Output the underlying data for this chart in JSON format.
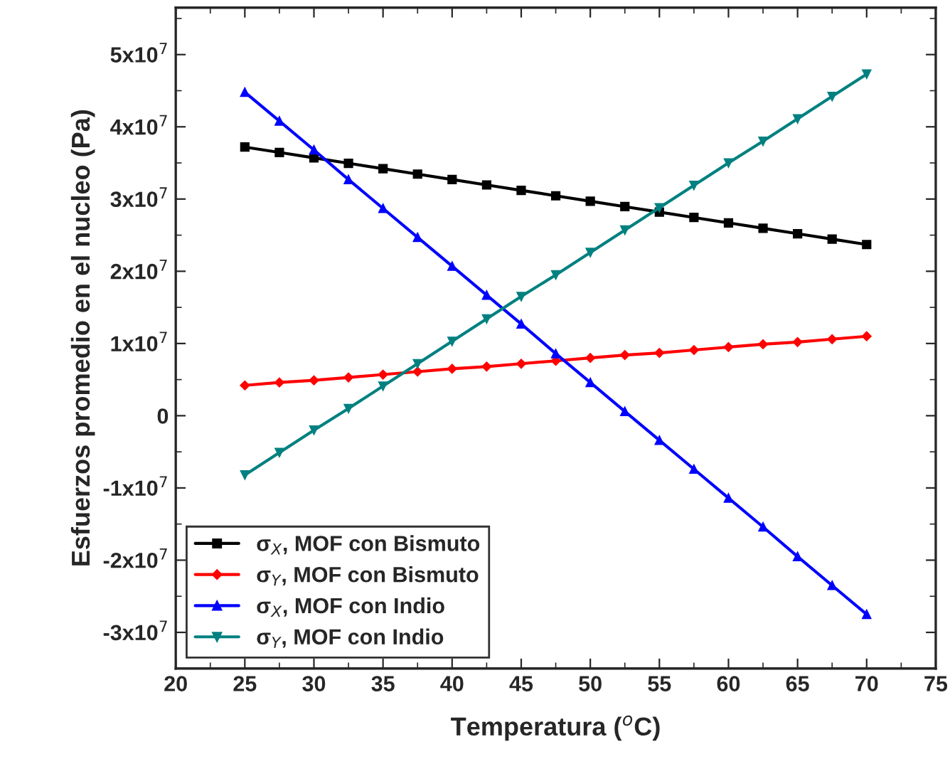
{
  "chart_data": {
    "type": "line",
    "xlabel": "Temperatura ($^{o}$C)",
    "ylabel": "Esfuerzos promedio en el nucleo (Pa)",
    "x": [
      25,
      27.5,
      30,
      32.5,
      35,
      37.5,
      40,
      42.5,
      45,
      47.5,
      50,
      52.5,
      55,
      57.5,
      60,
      62.5,
      65,
      67.5,
      70
    ],
    "xlim": [
      20,
      75
    ],
    "xticks": [
      20,
      25,
      30,
      35,
      40,
      45,
      50,
      55,
      60,
      65,
      70,
      75
    ],
    "ylim": [
      -35000000.0,
      56500000.0
    ],
    "yticks": [
      {
        "value": -30000000.0,
        "label": "-3x10$^{7}$"
      },
      {
        "value": -20000000.0,
        "label": "-2x10$^{7}$"
      },
      {
        "value": -10000000.0,
        "label": "-1x10$^{7}$"
      },
      {
        "value": 0,
        "label": "0"
      },
      {
        "value": 10000000.0,
        "label": "1x10$^{7}$"
      },
      {
        "value": 20000000.0,
        "label": "2x10$^{7}$"
      },
      {
        "value": 30000000.0,
        "label": "3x10$^{7}$"
      },
      {
        "value": 40000000.0,
        "label": "4x10$^{7}$"
      },
      {
        "value": 50000000.0,
        "label": "5x10$^{7}$"
      }
    ],
    "grid": false,
    "legend": "bottom left",
    "line_style": "solid",
    "series": [
      {
        "name": "σ$_{X}$, MOF con Bismuto",
        "color": "#000000",
        "marker": "square",
        "values": [
          37200000.0,
          36450000.0,
          35700000.0,
          34950000.0,
          34200000.0,
          33450000.0,
          32700000.0,
          31950000.0,
          31200000.0,
          30450000.0,
          29700000.0,
          28950000.0,
          28200000.0,
          27450000.0,
          26700000.0,
          25950000.0,
          25200000.0,
          24450000.0,
          23700000.0
        ]
      },
      {
        "name": "σ$_{Y}$, MOF con Bismuto",
        "color": "#ff0000",
        "marker": "diamond",
        "values": [
          4200000.0,
          4600000.0,
          4900000.0,
          5300000.0,
          5700000.0,
          6100000.0,
          6500000.0,
          6800000.0,
          7200000.0,
          7600000.0,
          8000000.0,
          8400000.0,
          8700000.0,
          9100000.0,
          9500000.0,
          9900000.0,
          10200000.0,
          10600000.0,
          11000000.0
        ]
      },
      {
        "name": "σ$_{X}$, MOF con Indio",
        "color": "#0000ff",
        "marker": "triangle",
        "values": [
          44800000.0,
          40800000.0,
          36800000.0,
          32700000.0,
          28700000.0,
          24700000.0,
          20700000.0,
          16700000.0,
          12700000.0,
          8600000.0,
          4600000.0,
          600000.0,
          -3400000.0,
          -7400000.0,
          -11400000.0,
          -15400000.0,
          -19500000.0,
          -23500000.0,
          -27500000.0
        ]
      },
      {
        "name": "σ$_{Y}$, MOF con Indio",
        "color": "#008080",
        "marker": "triangle_down",
        "values": [
          -8200000.0,
          -5100000.0,
          -2000000.0,
          1000000.0,
          4100000.0,
          7200000.0,
          10300000.0,
          13400000.0,
          16500000.0,
          19500000.0,
          22600000.0,
          25700000.0,
          28800000.0,
          31900000.0,
          35000000.0,
          38000000.0,
          41100000.0,
          44200000.0,
          47300000.0
        ]
      }
    ]
  }
}
